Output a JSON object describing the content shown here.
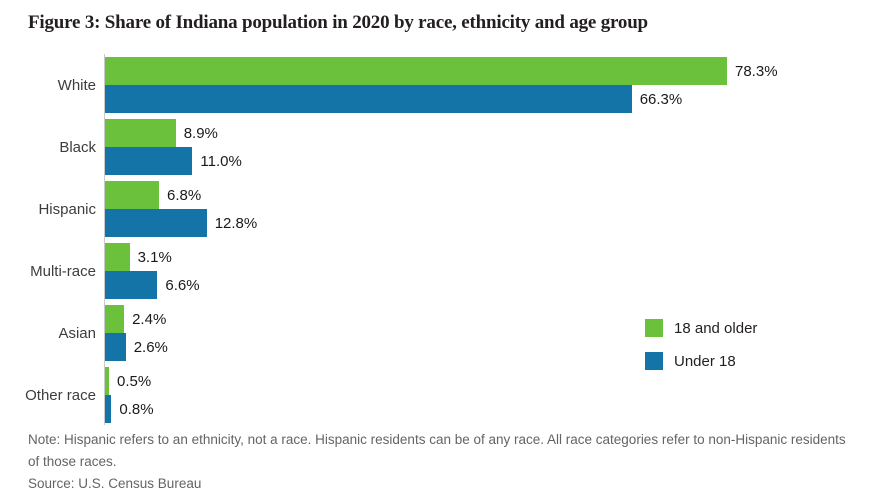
{
  "chart_data": {
    "type": "bar",
    "orientation": "horizontal",
    "title": "Figure 3: Share of Indiana population in 2020 by race, ethnicity and age group",
    "categories": [
      "White",
      "Black",
      "Hispanic",
      "Multi-race",
      "Asian",
      "Other race"
    ],
    "series": [
      {
        "name": "18 and older",
        "color": "#6BC03C",
        "values": [
          78.3,
          8.9,
          6.8,
          3.1,
          2.4,
          0.5
        ]
      },
      {
        "name": "Under 18",
        "color": "#1474A8",
        "values": [
          66.3,
          11.0,
          12.8,
          6.6,
          2.6,
          0.8
        ]
      }
    ],
    "value_suffix": "%",
    "value_labels": [
      [
        "78.3%",
        "8.9%",
        "6.8%",
        "3.1%",
        "2.4%",
        "0.5%"
      ],
      [
        "66.3%",
        "11.0%",
        "12.8%",
        "6.6%",
        "2.6%",
        "0.8%"
      ]
    ],
    "xlim": [
      0,
      80
    ],
    "grid": false,
    "legend_position": "right",
    "axis_line_color": "#c9cacb",
    "note": "Note: Hispanic refers to an ethnicity, not a race. Hispanic residents can be of any race. All race categories refer to non-Hispanic residents of those races.",
    "source": "Source: U.S. Census Bureau"
  }
}
